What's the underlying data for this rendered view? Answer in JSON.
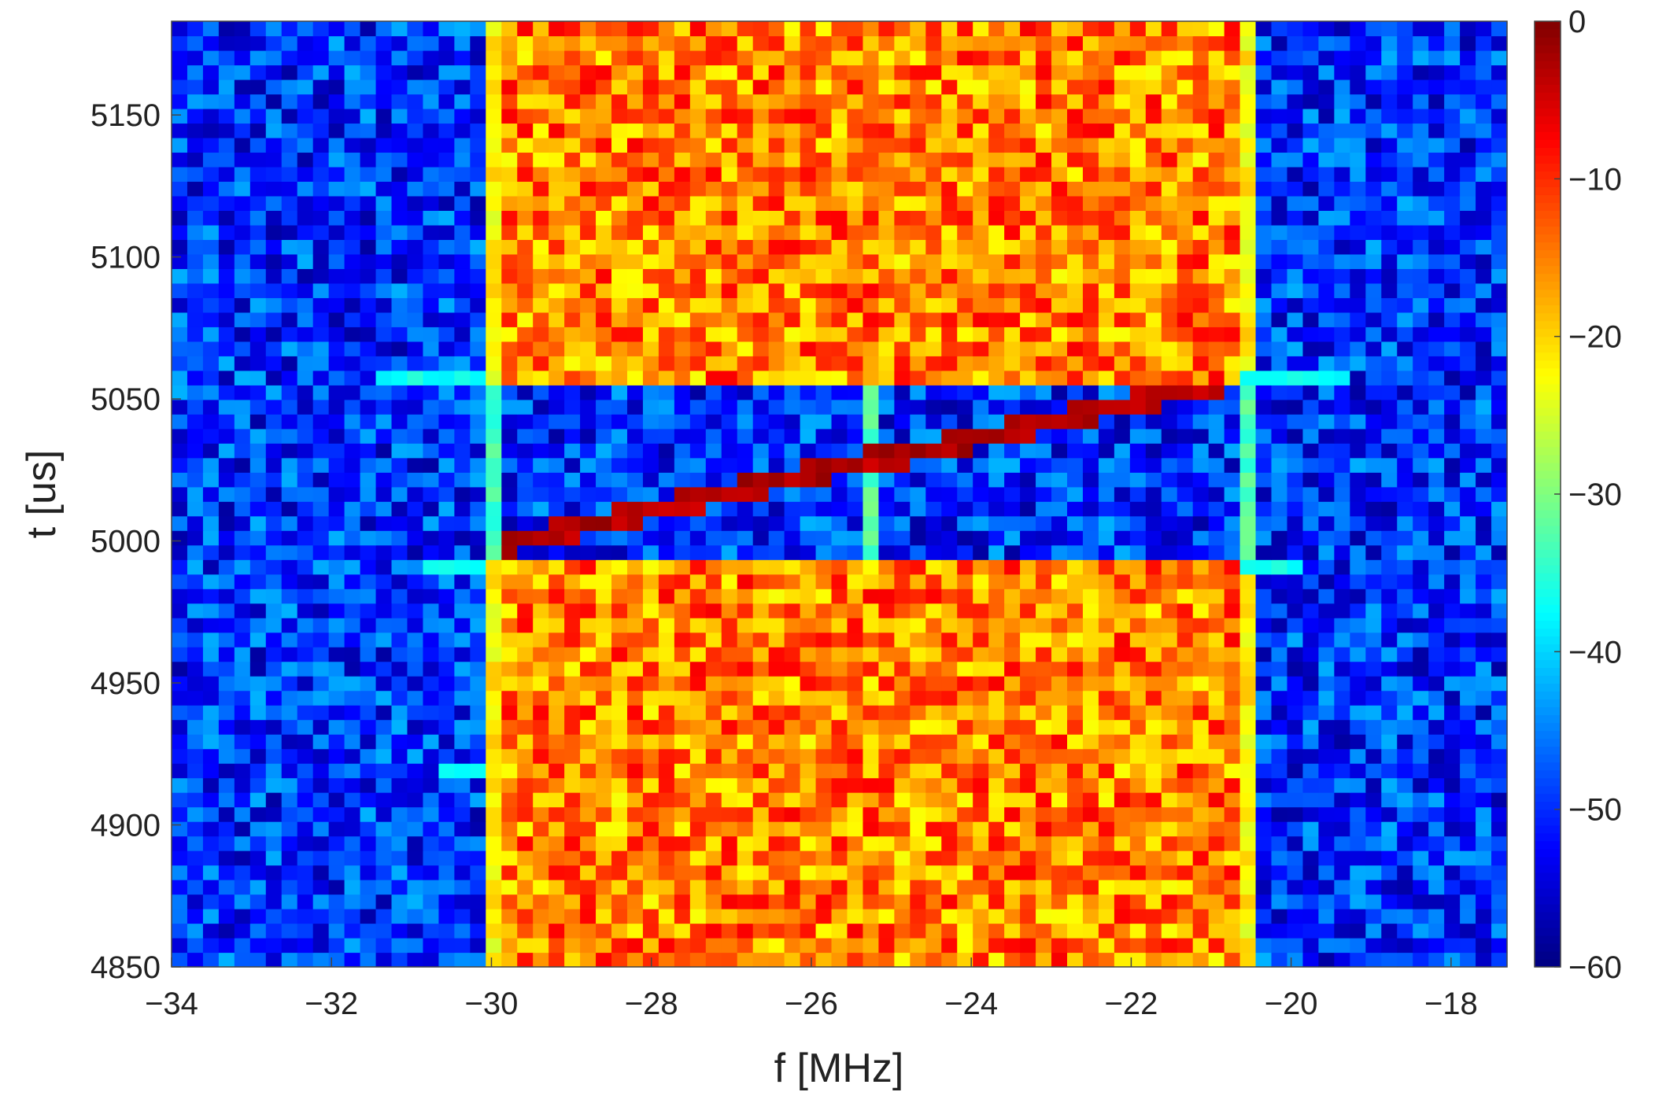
{
  "chart_data": {
    "type": "heatmap",
    "title": "",
    "xlabel": "f [MHz]",
    "ylabel": "t [us]",
    "xlim": [
      -34,
      -17.3
    ],
    "ylim": [
      4850,
      5183
    ],
    "xticks": [
      -34,
      -32,
      -30,
      -28,
      -26,
      -24,
      -22,
      -20,
      -18
    ],
    "xtick_labels": [
      "−34",
      "−32",
      "−30",
      "−28",
      "−26",
      "−24",
      "−22",
      "−20",
      "−18"
    ],
    "yticks": [
      4850,
      4900,
      4950,
      5000,
      5050,
      5100,
      5150
    ],
    "ytick_labels": [
      "4850",
      "4900",
      "4950",
      "5000",
      "5050",
      "5100",
      "5150"
    ],
    "colormap": "jet",
    "clim": [
      -60,
      0
    ],
    "colorbar_ticks": [
      0,
      -10,
      -20,
      -30,
      -40,
      -50,
      -60
    ],
    "colorbar_tick_labels": [
      "0",
      "−10",
      "−20",
      "−30",
      "−40",
      "−50",
      "−60"
    ],
    "grid_cells": {
      "x_bins": 85,
      "y_bins": 65
    },
    "regions": {
      "noise_floor_db": -50,
      "occupied_band_mhz": [
        -30,
        -20.6
      ],
      "occupied_band_level_db": -15,
      "gap_time_us": [
        4994,
        5055
      ],
      "gap_level_db": -50,
      "vertical_line_mhz": -25.3,
      "chirp": {
        "start": [
          -29.7,
          5000
        ],
        "end": [
          -21.0,
          5055
        ],
        "level_db": -3
      },
      "horizontal_streaks": [
        {
          "t_us": 5059,
          "f_range_mhz": [
            -31.5,
            -19.3
          ],
          "level_db": -37
        },
        {
          "t_us": 4990,
          "f_range_mhz": [
            -30.8,
            -19.8
          ],
          "level_db": -37
        },
        {
          "t_us": 4920,
          "f_range_mhz": [
            -30.6,
            -29.8
          ],
          "level_db": -37
        }
      ]
    }
  }
}
